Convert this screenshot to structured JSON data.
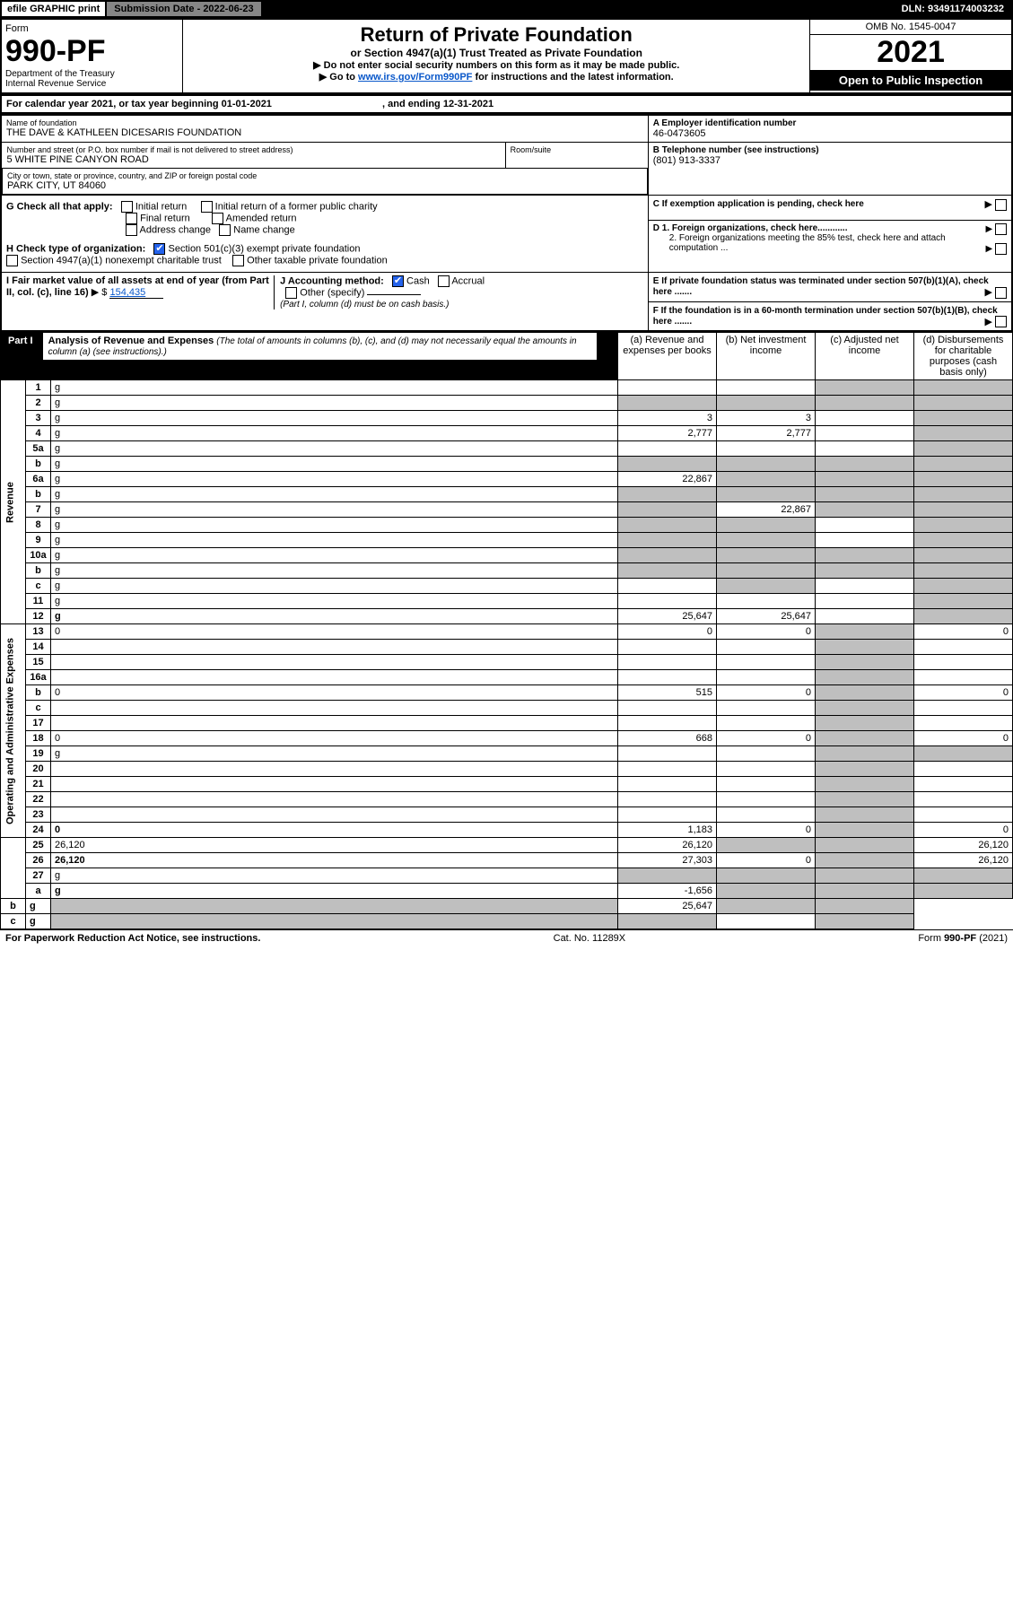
{
  "topbar": {
    "efile": "efile GRAPHIC print",
    "submission_label": "Submission Date - 2022-06-23",
    "dln": "DLN: 93491174003232"
  },
  "header": {
    "form_word": "Form",
    "form_no": "990-PF",
    "dept1": "Department of the Treasury",
    "dept2": "Internal Revenue Service",
    "title": "Return of Private Foundation",
    "subtitle": "or Section 4947(a)(1) Trust Treated as Private Foundation",
    "line1": "▶ Do not enter social security numbers on this form as it may be made public.",
    "line2_pre": "▶ Go to ",
    "line2_link": "www.irs.gov/Form990PF",
    "line2_post": " for instructions and the latest information.",
    "omb": "OMB No. 1545-0047",
    "year": "2021",
    "open": "Open to Public Inspection"
  },
  "cal": {
    "text_pre": "For calendar year 2021, or tax year beginning ",
    "begin": "01-01-2021",
    "mid": " , and ending ",
    "end": "12-31-2021"
  },
  "info": {
    "name_label": "Name of foundation",
    "name": "THE DAVE & KATHLEEN DICESARIS FOUNDATION",
    "addr_label": "Number and street (or P.O. box number if mail is not delivered to street address)",
    "addr": "5 WHITE PINE CANYON ROAD",
    "room_label": "Room/suite",
    "city_label": "City or town, state or province, country, and ZIP or foreign postal code",
    "city": "PARK CITY, UT  84060",
    "ein_label": "A Employer identification number",
    "ein": "46-0473605",
    "tel_label": "B Telephone number (see instructions)",
    "tel": "(801) 913-3337",
    "c_label": "C If exemption application is pending, check here",
    "d1": "D 1. Foreign organizations, check here............",
    "d2": "2. Foreign organizations meeting the 85% test, check here and attach computation ...",
    "e": "E  If private foundation status was terminated under section 507(b)(1)(A), check here .......",
    "f": "F  If the foundation is in a 60-month termination under section 507(b)(1)(B), check here .......",
    "g_label": "G Check all that apply:",
    "g_opts": [
      "Initial return",
      "Initial return of a former public charity",
      "Final return",
      "Amended return",
      "Address change",
      "Name change"
    ],
    "h_label": "H Check type of organization:",
    "h1": "Section 501(c)(3) exempt private foundation",
    "h2": "Section 4947(a)(1) nonexempt charitable trust",
    "h3": "Other taxable private foundation",
    "i_label": "I Fair market value of all assets at end of year (from Part II, col. (c), line 16)",
    "i_val": "154,435",
    "j_label": "J Accounting method:",
    "j_cash": "Cash",
    "j_accrual": "Accrual",
    "j_other": "Other (specify)",
    "j_note": "(Part I, column (d) must be on cash basis.)"
  },
  "part1": {
    "label": "Part I",
    "title": "Analysis of Revenue and Expenses",
    "title_note": "(The total of amounts in columns (b), (c), and (d) may not necessarily equal the amounts in column (a) (see instructions).)",
    "col_a": "(a)  Revenue and expenses per books",
    "col_b": "(b)  Net investment income",
    "col_c": "(c)  Adjusted net income",
    "col_d": "(d)  Disbursements for charitable purposes (cash basis only)"
  },
  "sidebars": {
    "rev": "Revenue",
    "exp": "Operating and Administrative Expenses"
  },
  "rows": [
    {
      "n": "1",
      "d": "g",
      "a": "",
      "b": "",
      "c": "g"
    },
    {
      "n": "2",
      "d": "g",
      "a": "g",
      "b": "g",
      "c": "g"
    },
    {
      "n": "3",
      "d": "g",
      "a": "3",
      "b": "3",
      "c": ""
    },
    {
      "n": "4",
      "d": "g",
      "a": "2,777",
      "b": "2,777",
      "c": ""
    },
    {
      "n": "5a",
      "d": "g",
      "a": "",
      "b": "",
      "c": ""
    },
    {
      "n": "b",
      "d": "g",
      "a": "g",
      "b": "g",
      "c": "g"
    },
    {
      "n": "6a",
      "d": "g",
      "a": "22,867",
      "b": "g",
      "c": "g"
    },
    {
      "n": "b",
      "d": "g",
      "a": "g",
      "b": "g",
      "c": "g"
    },
    {
      "n": "7",
      "d": "g",
      "a": "g",
      "b": "22,867",
      "c": "g"
    },
    {
      "n": "8",
      "d": "g",
      "a": "g",
      "b": "g",
      "c": ""
    },
    {
      "n": "9",
      "d": "g",
      "a": "g",
      "b": "g",
      "c": ""
    },
    {
      "n": "10a",
      "d": "g",
      "a": "g",
      "b": "g",
      "c": "g"
    },
    {
      "n": "b",
      "d": "g",
      "a": "g",
      "b": "g",
      "c": "g"
    },
    {
      "n": "c",
      "d": "g",
      "a": "",
      "b": "g",
      "c": ""
    },
    {
      "n": "11",
      "d": "g",
      "a": "",
      "b": "",
      "c": ""
    },
    {
      "n": "12",
      "d": "g",
      "a": "25,647",
      "b": "25,647",
      "c": "",
      "bold": true
    },
    {
      "n": "13",
      "d": "0",
      "a": "0",
      "b": "0",
      "c": "g"
    },
    {
      "n": "14",
      "d": "",
      "a": "",
      "b": "",
      "c": "g"
    },
    {
      "n": "15",
      "d": "",
      "a": "",
      "b": "",
      "c": "g"
    },
    {
      "n": "16a",
      "d": "",
      "a": "",
      "b": "",
      "c": "g"
    },
    {
      "n": "b",
      "d": "0",
      "a": "515",
      "b": "0",
      "c": "g"
    },
    {
      "n": "c",
      "d": "",
      "a": "",
      "b": "",
      "c": "g"
    },
    {
      "n": "17",
      "d": "",
      "a": "",
      "b": "",
      "c": "g"
    },
    {
      "n": "18",
      "d": "0",
      "a": "668",
      "b": "0",
      "c": "g"
    },
    {
      "n": "19",
      "d": "g",
      "a": "",
      "b": "",
      "c": "g"
    },
    {
      "n": "20",
      "d": "",
      "a": "",
      "b": "",
      "c": "g"
    },
    {
      "n": "21",
      "d": "",
      "a": "",
      "b": "",
      "c": "g"
    },
    {
      "n": "22",
      "d": "",
      "a": "",
      "b": "",
      "c": "g"
    },
    {
      "n": "23",
      "d": "",
      "a": "",
      "b": "",
      "c": "g"
    },
    {
      "n": "24",
      "d": "0",
      "a": "1,183",
      "b": "0",
      "c": "g",
      "bold": true
    },
    {
      "n": "25",
      "d": "26,120",
      "a": "26,120",
      "b": "g",
      "c": "g"
    },
    {
      "n": "26",
      "d": "26,120",
      "a": "27,303",
      "b": "0",
      "c": "g",
      "bold": true
    },
    {
      "n": "27",
      "d": "g",
      "a": "g",
      "b": "g",
      "c": "g"
    },
    {
      "n": "a",
      "d": "g",
      "a": "-1,656",
      "b": "g",
      "c": "g",
      "bold": true
    },
    {
      "n": "b",
      "d": "g",
      "a": "g",
      "b": "25,647",
      "c": "g",
      "bold": true
    },
    {
      "n": "c",
      "d": "g",
      "a": "g",
      "b": "g",
      "c": "",
      "bold": true
    }
  ],
  "footer": {
    "left": "For Paperwork Reduction Act Notice, see instructions.",
    "mid": "Cat. No. 11289X",
    "right": "Form 990-PF (2021)"
  },
  "colors": {
    "grey": "#bfbfbf",
    "blue": "#2563eb",
    "link": "#0a58ca"
  }
}
